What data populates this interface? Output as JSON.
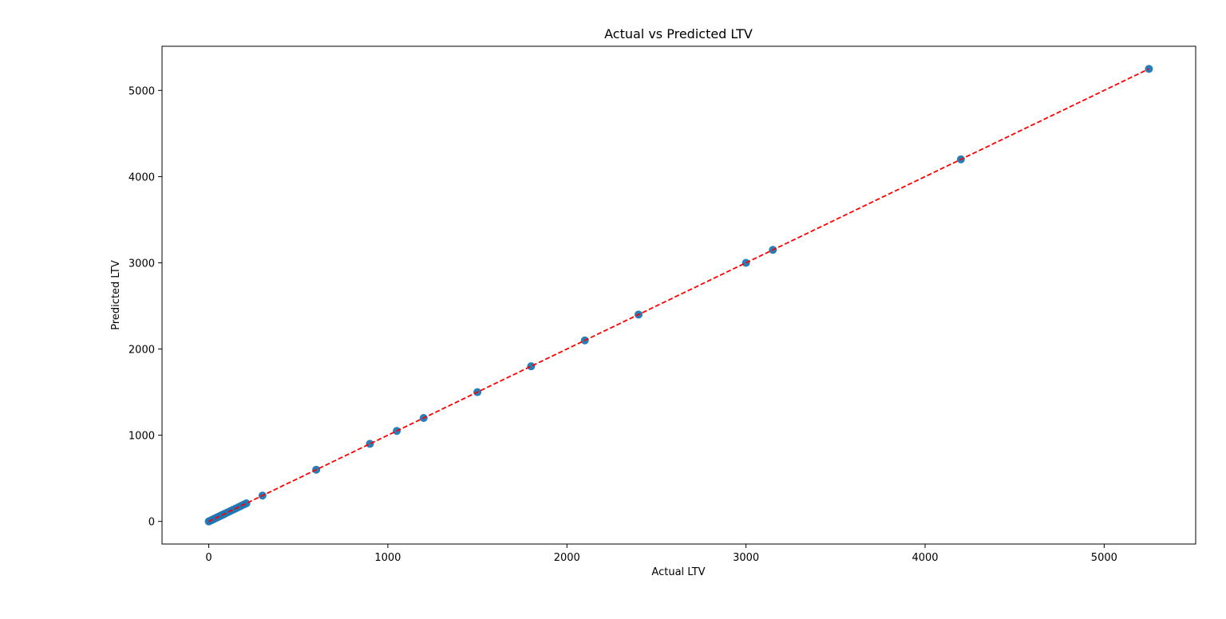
{
  "chart_data": {
    "type": "scatter",
    "title": "Actual vs Predicted LTV",
    "xlabel": "Actual LTV",
    "ylabel": "Predicted LTV",
    "xlim": [
      -261,
      5511
    ],
    "ylim": [
      -262,
      5512
    ],
    "xticks": [
      0,
      1000,
      2000,
      3000,
      4000,
      5000
    ],
    "yticks": [
      0,
      1000,
      2000,
      3000,
      4000,
      5000
    ],
    "grid": false,
    "legend": "none",
    "colors": {
      "points": "#1f77b4",
      "reference_line": "#ff0000"
    },
    "series": [
      {
        "x": [
          0,
          8,
          15,
          22,
          30,
          38,
          45,
          52,
          60,
          68,
          75,
          82,
          90,
          105,
          120,
          135,
          150,
          165,
          180,
          195,
          210,
          300,
          600,
          900,
          1050,
          1200,
          1500,
          1800,
          2100,
          2400,
          3000,
          3150,
          4200,
          5250
        ],
        "y": [
          0,
          8,
          15,
          22,
          30,
          38,
          45,
          52,
          60,
          68,
          75,
          82,
          90,
          105,
          120,
          135,
          150,
          165,
          180,
          195,
          210,
          300,
          600,
          900,
          1050,
          1200,
          1500,
          1800,
          2100,
          2400,
          3000,
          3150,
          4200,
          5250
        ]
      }
    ],
    "reference_line": {
      "x": [
        0,
        5250
      ],
      "y": [
        0,
        5250
      ]
    }
  }
}
